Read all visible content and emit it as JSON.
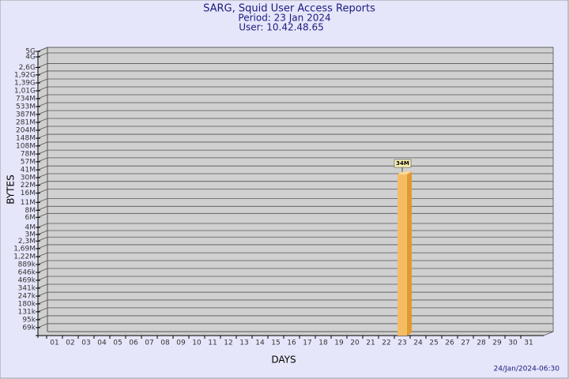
{
  "chart_data": {
    "type": "bar",
    "title": "SARG, Squid User Access Reports",
    "subtitle": [
      "Period: 23 Jan 2024",
      "User: 10.42.48.65"
    ],
    "y_label": "BYTES",
    "x_label": "DAYS",
    "footer": "24/Jan/2024-06:30",
    "log_scale": true,
    "grid": true,
    "color": "#f5bd63",
    "categories": [
      "01",
      "02",
      "03",
      "04",
      "05",
      "06",
      "07",
      "08",
      "09",
      "10",
      "11",
      "12",
      "13",
      "14",
      "15",
      "16",
      "17",
      "18",
      "19",
      "20",
      "21",
      "22",
      "23",
      "24",
      "25",
      "26",
      "27",
      "28",
      "29",
      "30",
      "31"
    ],
    "values": [
      null,
      null,
      null,
      null,
      null,
      null,
      null,
      null,
      null,
      null,
      null,
      null,
      null,
      null,
      null,
      null,
      null,
      null,
      null,
      null,
      null,
      null,
      34000000,
      null,
      null,
      null,
      null,
      null,
      null,
      null,
      null
    ],
    "value_labels": [
      null,
      null,
      null,
      null,
      null,
      null,
      null,
      null,
      null,
      null,
      null,
      null,
      null,
      null,
      null,
      null,
      null,
      null,
      null,
      null,
      null,
      null,
      "34M",
      null,
      null,
      null,
      null,
      null,
      null,
      null,
      null
    ],
    "ylim": [
      50000,
      5000000000
    ],
    "yticks": [
      {
        "value": 69000,
        "label": "69k"
      },
      {
        "value": 95000,
        "label": "95k"
      },
      {
        "value": 131000,
        "label": "131k"
      },
      {
        "value": 180000,
        "label": "180k"
      },
      {
        "value": 247000,
        "label": "247k"
      },
      {
        "value": 341000,
        "label": "341k"
      },
      {
        "value": 469000,
        "label": "469k"
      },
      {
        "value": 646000,
        "label": "646k"
      },
      {
        "value": 889000,
        "label": "889k"
      },
      {
        "value": 1220000,
        "label": "1,22M"
      },
      {
        "value": 1690000,
        "label": "1,69M"
      },
      {
        "value": 2300000,
        "label": "2,3M"
      },
      {
        "value": 3000000,
        "label": "3M"
      },
      {
        "value": 4000000,
        "label": "4M"
      },
      {
        "value": 6000000,
        "label": "6M"
      },
      {
        "value": 8000000,
        "label": "8M"
      },
      {
        "value": 11000000,
        "label": "11M"
      },
      {
        "value": 16000000,
        "label": "16M"
      },
      {
        "value": 22000000,
        "label": "22M"
      },
      {
        "value": 30000000,
        "label": "30M"
      },
      {
        "value": 41000000,
        "label": "41M"
      },
      {
        "value": 57000000,
        "label": "57M"
      },
      {
        "value": 78000000,
        "label": "78M"
      },
      {
        "value": 108000000,
        "label": "108M"
      },
      {
        "value": 148000000,
        "label": "148M"
      },
      {
        "value": 204000000,
        "label": "204M"
      },
      {
        "value": 281000000,
        "label": "281M"
      },
      {
        "value": 387000000,
        "label": "387M"
      },
      {
        "value": 533000000,
        "label": "533M"
      },
      {
        "value": 734000000,
        "label": "734M"
      },
      {
        "value": 1010000000,
        "label": "1,01G"
      },
      {
        "value": 1390000000,
        "label": "1,39G"
      },
      {
        "value": 1920000000,
        "label": "1,92G"
      },
      {
        "value": 2600000000,
        "label": "2,6G"
      },
      {
        "value": 4000000000,
        "label": "4G"
      },
      {
        "value": 5000000000,
        "label": "5G"
      }
    ]
  }
}
